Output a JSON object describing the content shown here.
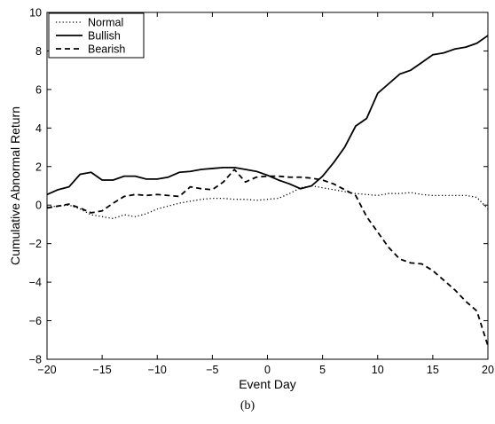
{
  "chart_data": {
    "type": "line",
    "xlabel": "Event Day",
    "ylabel": "Cumulative Abnormal Return",
    "xlim": [
      -20,
      20
    ],
    "ylim": [
      -8,
      10
    ],
    "xticks": [
      -20,
      -15,
      -10,
      -5,
      0,
      5,
      10,
      15,
      20
    ],
    "yticks": [
      -8,
      -6,
      -4,
      -2,
      0,
      2,
      4,
      6,
      8,
      10
    ],
    "xtick_labels": [
      "−20",
      "−15",
      "−10",
      "−5",
      "0",
      "5",
      "10",
      "15",
      "20"
    ],
    "ytick_labels": [
      "−8",
      "−6",
      "−4",
      "−2",
      "0",
      "2",
      "4",
      "6",
      "8",
      "10"
    ],
    "grid": false,
    "legend_position": "top-left",
    "x": [
      -20,
      -19,
      -18,
      -17,
      -16,
      -15,
      -14,
      -13,
      -12,
      -11,
      -10,
      -9,
      -8,
      -7,
      -6,
      -5,
      -4,
      -3,
      -2,
      -1,
      0,
      1,
      2,
      3,
      4,
      5,
      6,
      7,
      8,
      9,
      10,
      11,
      12,
      13,
      14,
      15,
      16,
      17,
      18,
      19,
      20
    ],
    "series": [
      {
        "name": "Normal",
        "style": "dotted",
        "color": "#000000",
        "values": [
          -0.1,
          -0.05,
          0.0,
          -0.2,
          -0.5,
          -0.6,
          -0.7,
          -0.5,
          -0.6,
          -0.45,
          -0.2,
          -0.05,
          0.1,
          0.2,
          0.3,
          0.35,
          0.35,
          0.3,
          0.3,
          0.25,
          0.3,
          0.35,
          0.6,
          0.9,
          1.0,
          0.9,
          0.8,
          0.7,
          0.6,
          0.55,
          0.5,
          0.6,
          0.6,
          0.65,
          0.55,
          0.5,
          0.5,
          0.5,
          0.5,
          0.4,
          -0.2
        ]
      },
      {
        "name": "Bullish",
        "style": "solid",
        "color": "#000000",
        "values": [
          0.55,
          0.8,
          0.95,
          1.6,
          1.7,
          1.3,
          1.3,
          1.5,
          1.5,
          1.35,
          1.35,
          1.45,
          1.7,
          1.75,
          1.85,
          1.9,
          1.95,
          1.95,
          1.85,
          1.75,
          1.55,
          1.3,
          1.1,
          0.85,
          1.0,
          1.5,
          2.2,
          3.0,
          4.1,
          4.5,
          5.8,
          6.3,
          6.8,
          7.0,
          7.4,
          7.8,
          7.9,
          8.1,
          8.2,
          8.4,
          8.8
        ]
      },
      {
        "name": "Bearish",
        "style": "dashed",
        "color": "#000000",
        "values": [
          -0.15,
          -0.05,
          0.05,
          -0.15,
          -0.4,
          -0.3,
          0.1,
          0.45,
          0.55,
          0.5,
          0.55,
          0.5,
          0.45,
          0.95,
          0.85,
          0.8,
          1.2,
          1.85,
          1.2,
          1.45,
          1.5,
          1.5,
          1.45,
          1.45,
          1.4,
          1.3,
          1.1,
          0.8,
          0.5,
          -0.6,
          -1.4,
          -2.2,
          -2.8,
          -3.0,
          -3.05,
          -3.4,
          -3.9,
          -4.4,
          -5.0,
          -5.5,
          -7.3
        ]
      }
    ]
  },
  "caption": "(b)"
}
